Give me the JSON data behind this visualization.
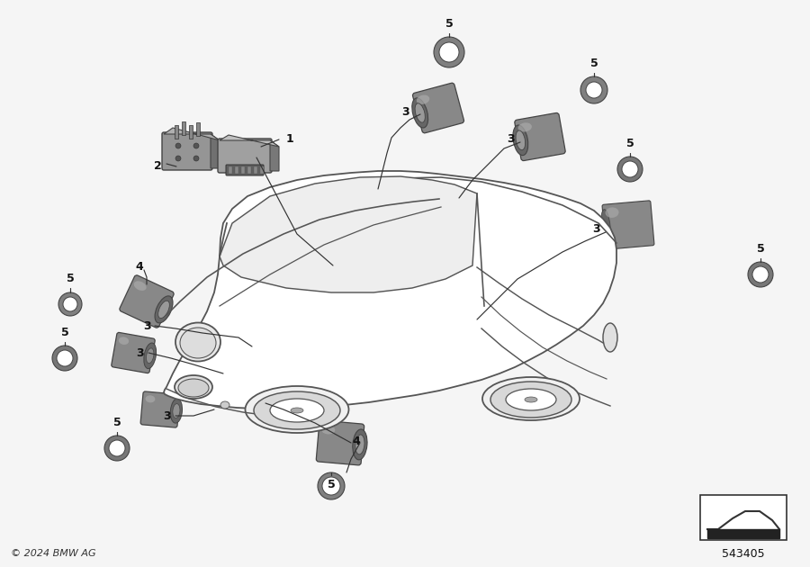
{
  "bg_color": "#f5f5f5",
  "copyright": "© 2024 BMW AG",
  "diagram_number": "543405",
  "car": {
    "body_color": "#ffffff",
    "line_color": "#555555",
    "line_width": 1.3
  },
  "sensors": {
    "color_light": "#aaaaaa",
    "color_mid": "#888888",
    "color_dark": "#666666",
    "color_darker": "#444444"
  },
  "ecu_color": "#909090",
  "label_fontsize": 9,
  "label_fontweight": "bold"
}
